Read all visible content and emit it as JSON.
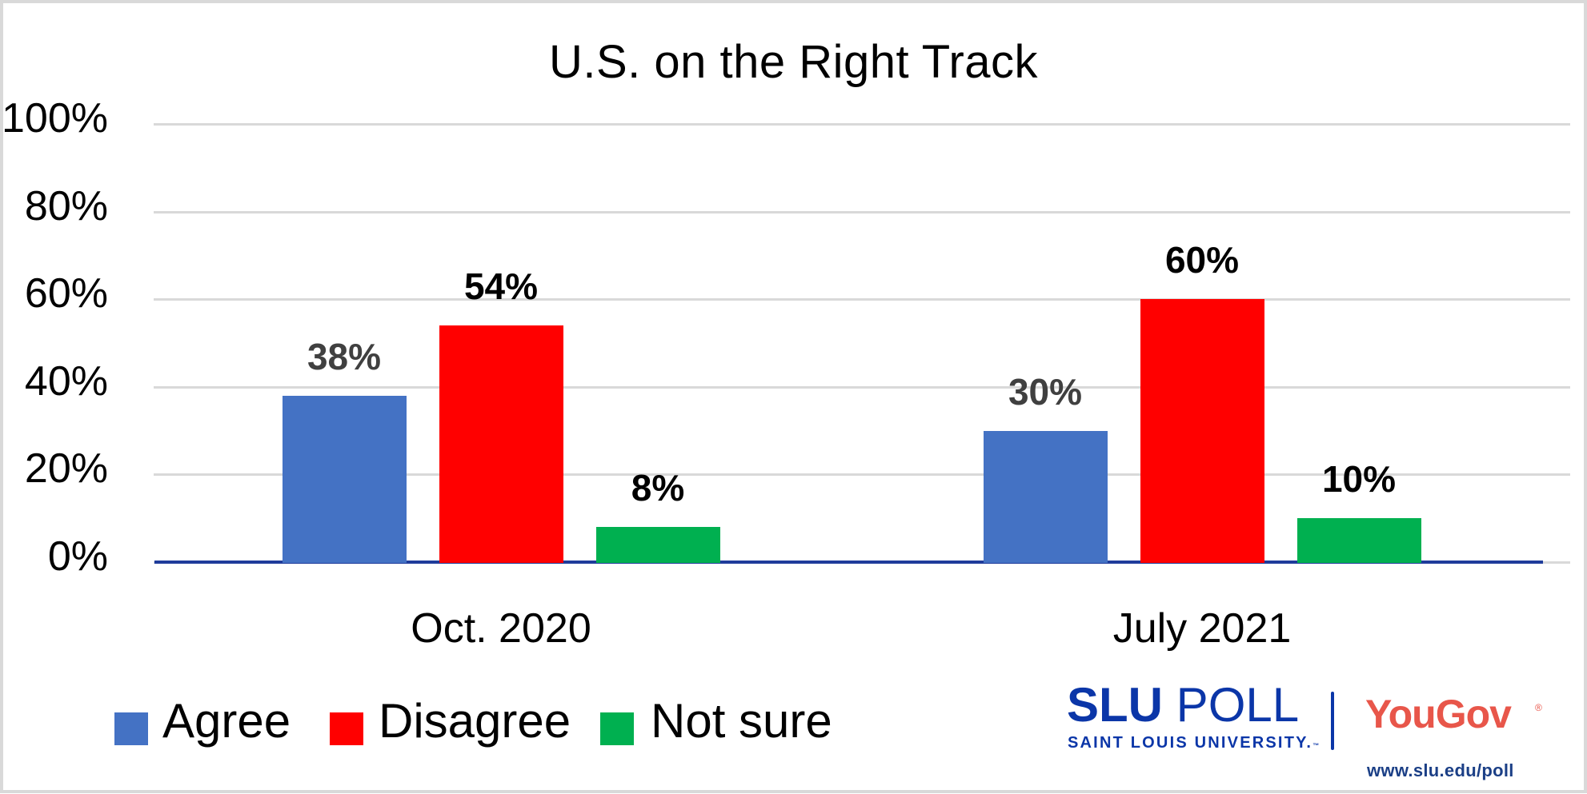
{
  "chart_data": {
    "type": "bar",
    "title": "U.S. on the Right Track",
    "categories": [
      "Oct. 2020",
      "July 2021"
    ],
    "series": [
      {
        "name": "Agree",
        "values": [
          38,
          30
        ],
        "color": "#4472C4",
        "label_color": "#404040"
      },
      {
        "name": "Disagree",
        "values": [
          54,
          60
        ],
        "color": "#FF0000",
        "label_color": "#000000"
      },
      {
        "name": "Not sure",
        "values": [
          8,
          10
        ],
        "color": "#00B050",
        "label_color": "#000000"
      }
    ],
    "data_labels": [
      [
        "38%",
        "30%"
      ],
      [
        "54%",
        "60%"
      ],
      [
        "8%",
        "10%"
      ]
    ],
    "xlabel": "",
    "ylabel": "",
    "ylim": [
      0,
      100
    ],
    "yticks": [
      "0%",
      "20%",
      "40%",
      "60%",
      "80%",
      "100%"
    ],
    "grid": true,
    "legend_position": "bottom-left"
  },
  "legend": {
    "items": [
      {
        "label": "Agree",
        "color": "#4472C4"
      },
      {
        "label": "Disagree",
        "color": "#FF0000"
      },
      {
        "label": "Not sure",
        "color": "#00B050"
      }
    ]
  },
  "branding": {
    "slu_bold": "SLU",
    "slu_regular": " POLL",
    "slu_sub": "SAINT LOUIS UNIVERSITY.",
    "slu_tm": "™",
    "yougov": "YouGov",
    "yougov_reg": "®",
    "url": "www.slu.edu/poll",
    "slu_color": "#0B36A8",
    "yougov_color": "#E8564A"
  }
}
